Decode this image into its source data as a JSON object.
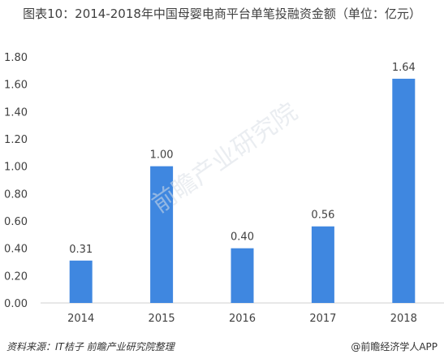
{
  "chart_data": {
    "type": "bar",
    "title": "图表10：2014-2018年中国母婴电商平台单笔投融资金额（单位：亿元）",
    "categories": [
      "2014",
      "2015",
      "2016",
      "2017",
      "2018"
    ],
    "values": [
      0.31,
      1.0,
      0.4,
      0.56,
      1.64
    ],
    "data_labels": [
      "0.31",
      "1.00",
      "0.40",
      "0.56",
      "1.64"
    ],
    "yticks": [
      "0.00",
      "0.20",
      "0.40",
      "0.60",
      "0.80",
      "1.00",
      "1.20",
      "1.40",
      "1.60",
      "1.80"
    ],
    "ylim": [
      0,
      1.8
    ],
    "xlabel": "",
    "ylabel": "",
    "grid": false,
    "bar_color": "#3f87e0"
  },
  "footer": {
    "source": "资料来源：IT桔子 前瞻产业研究院整理",
    "brand": "@前瞻经济学人APP"
  },
  "watermark": {
    "text": "前瞻产业研究院"
  }
}
